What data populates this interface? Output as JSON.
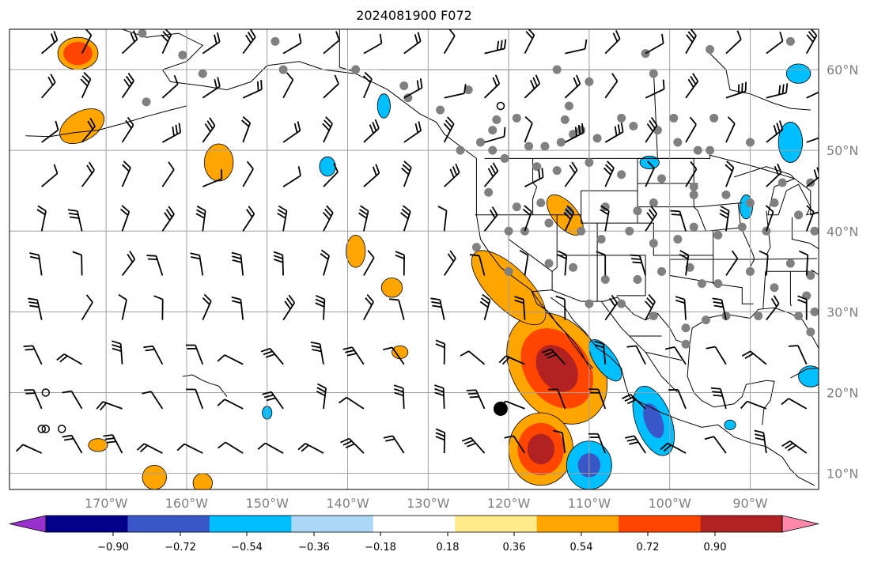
{
  "title": "2024081900 F072",
  "map": {
    "projection": "PlateCarree",
    "extent": {
      "lon_min": -182,
      "lon_max": -81.5,
      "lat_min": 8,
      "lat_max": 65
    },
    "gridlines": true,
    "lat_ticks": [
      {
        "value": 60,
        "label": "60°N"
      },
      {
        "value": 50,
        "label": "50°N"
      },
      {
        "value": 40,
        "label": "40°N"
      },
      {
        "value": 30,
        "label": "30°N"
      },
      {
        "value": 20,
        "label": "20°N"
      },
      {
        "value": 10,
        "label": "10°N"
      }
    ],
    "lon_ticks": [
      {
        "value": -170,
        "label": "170°W"
      },
      {
        "value": -160,
        "label": "160°W"
      },
      {
        "value": -150,
        "label": "150°W"
      },
      {
        "value": -140,
        "label": "140°W"
      },
      {
        "value": -130,
        "label": "130°W"
      },
      {
        "value": -120,
        "label": "120°W"
      },
      {
        "value": -110,
        "label": "110°W"
      },
      {
        "value": -100,
        "label": "100°W"
      },
      {
        "value": -90,
        "label": "90°W"
      }
    ],
    "fill_colors": {
      "neg_strong": "#3a57c8",
      "neg_mid": "#00bfff",
      "pos_weak": "#ffa500",
      "pos_mid": "#ff4500",
      "pos_strong": "#b22222"
    },
    "anomaly_regions": [
      {
        "sign": "pos",
        "lon": -114,
        "lat": 23,
        "rx": 5.5,
        "ry": 7.5,
        "rot": -35,
        "peak": 0.75
      },
      {
        "sign": "pos",
        "lon": -116,
        "lat": 13,
        "rx": 4,
        "ry": 4.5,
        "rot": 0,
        "peak": 0.9
      },
      {
        "sign": "pos",
        "lon": -120,
        "lat": 33,
        "rx": 2.5,
        "ry": 6,
        "rot": -45,
        "peak": 0.45
      },
      {
        "sign": "pos",
        "lon": -113,
        "lat": 42,
        "rx": 1.5,
        "ry": 3,
        "rot": -40,
        "peak": 0.4
      },
      {
        "sign": "pos",
        "lon": -173,
        "lat": 53,
        "rx": 3,
        "ry": 1.8,
        "rot": -30,
        "peak": 0.45
      },
      {
        "sign": "pos",
        "lon": -173.5,
        "lat": 62,
        "rx": 2.5,
        "ry": 2,
        "rot": 0,
        "peak": 0.6
      },
      {
        "sign": "pos",
        "lon": -156,
        "lat": 48.5,
        "rx": 1.8,
        "ry": 2.3,
        "rot": 0,
        "peak": 0.4
      },
      {
        "sign": "pos",
        "lon": -139,
        "lat": 37.5,
        "rx": 1.2,
        "ry": 2,
        "rot": 0,
        "peak": 0.4
      },
      {
        "sign": "pos",
        "lon": -134.5,
        "lat": 33,
        "rx": 1.3,
        "ry": 1.2,
        "rot": 0,
        "peak": 0.4
      },
      {
        "sign": "pos",
        "lon": -164,
        "lat": 9.5,
        "rx": 1.5,
        "ry": 1.5,
        "rot": 0,
        "peak": 0.5
      },
      {
        "sign": "pos",
        "lon": -158,
        "lat": 8.8,
        "rx": 1.2,
        "ry": 1.2,
        "rot": 0,
        "peak": 0.4
      },
      {
        "sign": "pos",
        "lon": -171,
        "lat": 13.5,
        "rx": 1.2,
        "ry": 0.8,
        "rot": 0,
        "peak": 0.4
      },
      {
        "sign": "pos",
        "lon": -133.5,
        "lat": 25,
        "rx": 1.0,
        "ry": 0.8,
        "rot": 0,
        "peak": 0.4
      },
      {
        "sign": "neg",
        "lon": -110,
        "lat": 11,
        "rx": 2.8,
        "ry": 3,
        "rot": 0,
        "peak": -0.72
      },
      {
        "sign": "neg",
        "lon": -102,
        "lat": 16.5,
        "rx": 2.2,
        "ry": 4.5,
        "rot": -20,
        "peak": -0.6
      },
      {
        "sign": "neg",
        "lon": -108,
        "lat": 24,
        "rx": 1.3,
        "ry": 3,
        "rot": -35,
        "peak": -0.4
      },
      {
        "sign": "neg",
        "lon": -85,
        "lat": 51,
        "rx": 1.5,
        "ry": 2.5,
        "rot": 0,
        "peak": -0.45
      },
      {
        "sign": "neg",
        "lon": -84,
        "lat": 59.5,
        "rx": 1.5,
        "ry": 1.2,
        "rot": 0,
        "peak": -0.4
      },
      {
        "sign": "neg",
        "lon": -142.5,
        "lat": 48,
        "rx": 1.0,
        "ry": 1.2,
        "rot": 0,
        "peak": -0.4
      },
      {
        "sign": "neg",
        "lon": -135.5,
        "lat": 55.5,
        "rx": 0.8,
        "ry": 1.5,
        "rot": 0,
        "peak": -0.4
      },
      {
        "sign": "neg",
        "lon": -82.5,
        "lat": 22,
        "rx": 1.5,
        "ry": 1.3,
        "rot": 0,
        "peak": -0.4
      },
      {
        "sign": "neg",
        "lon": -102.5,
        "lat": 48.5,
        "rx": 1.2,
        "ry": 0.8,
        "rot": 0,
        "peak": -0.4
      },
      {
        "sign": "neg",
        "lon": -90.5,
        "lat": 43,
        "rx": 0.8,
        "ry": 1.5,
        "rot": 0,
        "peak": -0.4
      },
      {
        "sign": "neg",
        "lon": -150,
        "lat": 17.5,
        "rx": 0.6,
        "ry": 0.8,
        "rot": 0,
        "peak": -0.4
      },
      {
        "sign": "neg",
        "lon": -92.5,
        "lat": 16,
        "rx": 0.7,
        "ry": 0.6,
        "rot": 0,
        "peak": -0.4
      }
    ],
    "stations": [
      [
        -165.5,
        64.5
      ],
      [
        -160.5,
        61.8
      ],
      [
        -165,
        56
      ],
      [
        -158,
        59.5
      ],
      [
        -149,
        63.5
      ],
      [
        -148,
        60
      ],
      [
        -139,
        60
      ],
      [
        -133,
        58
      ],
      [
        -132.5,
        56.5
      ],
      [
        -128.5,
        55
      ],
      [
        -122,
        52.5
      ],
      [
        -125,
        57.5
      ],
      [
        -114,
        60
      ],
      [
        -110,
        58.5
      ],
      [
        -112.5,
        55.5
      ],
      [
        -121.5,
        53.8
      ],
      [
        -119,
        54
      ],
      [
        -123.5,
        51
      ],
      [
        -126,
        50
      ],
      [
        -122,
        50
      ],
      [
        -120.5,
        49
      ],
      [
        -117.5,
        50.5
      ],
      [
        -115.5,
        50.5
      ],
      [
        -113,
        53.8
      ],
      [
        -111,
        52.5
      ],
      [
        -112,
        52
      ],
      [
        -113.5,
        51
      ],
      [
        -109,
        51.5
      ],
      [
        -106,
        54
      ],
      [
        -104.5,
        53
      ],
      [
        -101.5,
        52.5
      ],
      [
        -99.5,
        54
      ],
      [
        -99,
        51
      ],
      [
        -96.5,
        50
      ],
      [
        -95,
        50
      ],
      [
        -94.5,
        54
      ],
      [
        -90,
        51
      ],
      [
        -102,
        59.5
      ],
      [
        -103,
        62
      ],
      [
        -95,
        62.5
      ],
      [
        -85,
        63.5
      ],
      [
        -116.5,
        48
      ],
      [
        -114,
        47.5
      ],
      [
        -110,
        48.5
      ],
      [
        -106,
        47
      ],
      [
        -101,
        46.5
      ],
      [
        -97,
        45.5
      ],
      [
        -122.5,
        44.8
      ],
      [
        -119,
        43
      ],
      [
        -116,
        43.5
      ],
      [
        -112.5,
        42.5
      ],
      [
        -108,
        43
      ],
      [
        -104,
        42.5
      ],
      [
        -102,
        43.5
      ],
      [
        -97,
        44.5
      ],
      [
        -93,
        44.5
      ],
      [
        -90,
        43.5
      ],
      [
        -87,
        43.5
      ],
      [
        -84,
        42
      ],
      [
        -86,
        46
      ],
      [
        -82.5,
        46
      ],
      [
        -120,
        40
      ],
      [
        -124,
        38
      ],
      [
        -118,
        40
      ],
      [
        -115,
        41
      ],
      [
        -111,
        40
      ],
      [
        -108.5,
        39
      ],
      [
        -105,
        40
      ],
      [
        -102,
        38.5
      ],
      [
        -99,
        39
      ],
      [
        -97,
        40.5
      ],
      [
        -94,
        39.5
      ],
      [
        -91,
        40.5
      ],
      [
        -88,
        40
      ],
      [
        -82,
        40
      ],
      [
        -120,
        35
      ],
      [
        -115,
        36
      ],
      [
        -112,
        35.5
      ],
      [
        -108,
        34
      ],
      [
        -104,
        34
      ],
      [
        -101,
        35
      ],
      [
        -97.5,
        35.5
      ],
      [
        -96,
        33.5
      ],
      [
        -94,
        33.5
      ],
      [
        -90,
        35
      ],
      [
        -87,
        33
      ],
      [
        -83,
        32
      ],
      [
        -85,
        36
      ],
      [
        -82.5,
        34.5
      ],
      [
        -110,
        31
      ],
      [
        -106,
        31
      ],
      [
        -102,
        29.5
      ],
      [
        -98,
        28
      ],
      [
        -95.5,
        29
      ],
      [
        -93,
        29.5
      ],
      [
        -89,
        29.5
      ],
      [
        -84,
        29.5
      ],
      [
        -82,
        30
      ],
      [
        -82.5,
        27.5
      ],
      [
        -98,
        26
      ]
    ],
    "large_marker": [
      -121,
      18
    ],
    "open_circles": [
      [
        -177.5,
        20
      ],
      [
        -178,
        15.5
      ],
      [
        -177.5,
        15.5
      ],
      [
        -175.5,
        15.5
      ],
      [
        -121,
        55.5
      ]
    ],
    "wind_grid": {
      "lon_step": 5,
      "lat_step": 5.5
    }
  },
  "colorbar": {
    "ticks": [
      "−0.90",
      "−0.72",
      "−0.54",
      "−0.36",
      "−0.18",
      "0.18",
      "0.36",
      "0.54",
      "0.72",
      "0.90"
    ],
    "colors": [
      "#9932cc",
      "#00008b",
      "#3a57c8",
      "#00bfff",
      "#add8f7",
      "#ffffff",
      "#ffeb8a",
      "#ffa500",
      "#ff4500",
      "#b22222",
      "#ff88aa"
    ],
    "extend": "both"
  }
}
